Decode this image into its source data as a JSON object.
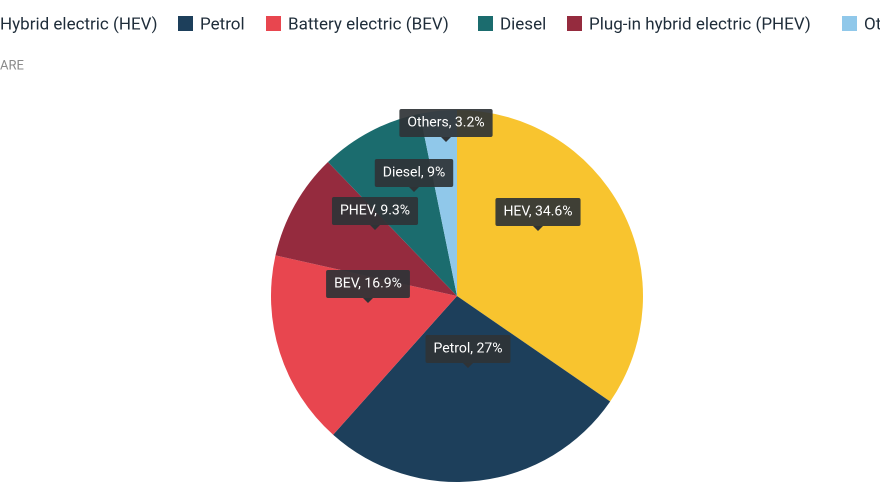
{
  "chart_data": {
    "type": "pie",
    "subtitle": "ARE",
    "categories": [
      "Hybrid electric (HEV)",
      "Petrol",
      "Battery electric (BEV)",
      "Diesel",
      "Plug-in hybrid electric (PHEV)",
      "Others"
    ],
    "values": [
      34.6,
      27,
      16.9,
      9,
      9.3,
      3.2
    ],
    "value_labels": [
      "HEV, 34.6%",
      "Petrol, 27%",
      "BEV, 16.9%",
      "Diesel, 9%",
      "PHEV, 9.3%",
      "Others, 3.2%"
    ],
    "colors": [
      "#f8c42f",
      "#1d3f5b",
      "#e8464f",
      "#1b6c6e",
      "#952b3e",
      "#90c8ea"
    ],
    "slice_order": [
      0,
      1,
      2,
      4,
      3,
      5
    ]
  }
}
